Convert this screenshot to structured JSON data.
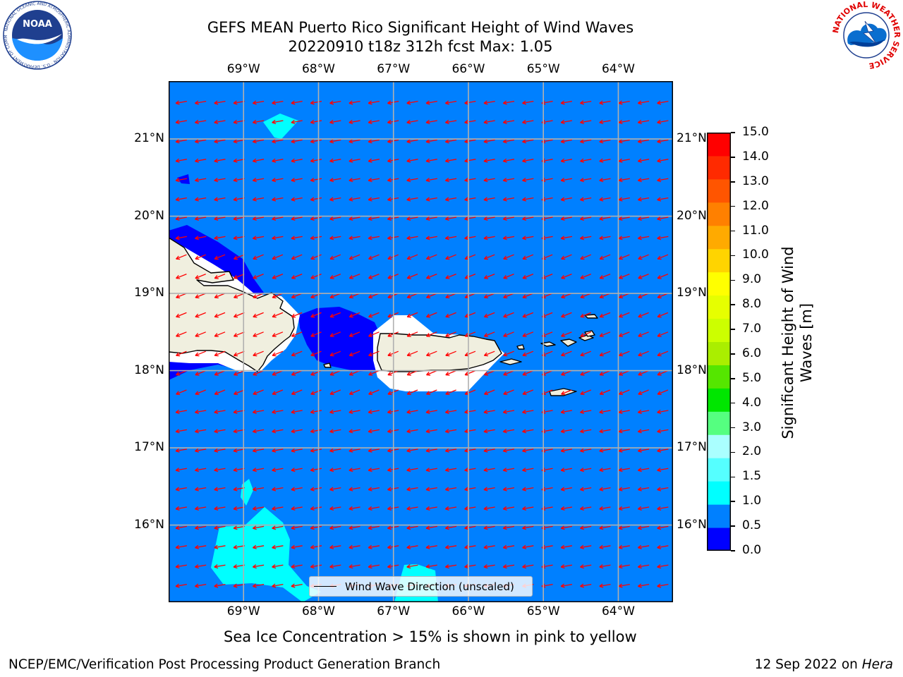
{
  "title": {
    "line1": "GEFS MEAN Puerto Rico Significant Height of Wind Waves",
    "line2": "20220910 t18z 312h fcst   Max: 1.05"
  },
  "logos": {
    "left": {
      "icon": "noaa-logo",
      "text": "NOAA",
      "ring_text": "NATIONAL OCEANIC AND ATMOSPHERIC ADMINISTRATION · U.S. DEPARTMENT OF COMMERCE"
    },
    "right": {
      "icon": "nws-logo",
      "ring_text": "NATIONAL WEATHER SERVICE"
    }
  },
  "map": {
    "lon_labels": [
      "69°W",
      "68°W",
      "67°W",
      "66°W",
      "65°W",
      "64°W"
    ],
    "lat_labels": [
      "21°N",
      "20°N",
      "19°N",
      "18°N",
      "17°N",
      "16°N"
    ],
    "lon_values": [
      -69,
      -68,
      -67,
      -66,
      -65,
      -64
    ],
    "lat_values": [
      21,
      20,
      19,
      18,
      17,
      16
    ],
    "extent": {
      "lon_min": -70,
      "lon_max": -63.27,
      "lat_min": 15,
      "lat_max": 21.75
    },
    "colors": {
      "ocean_base": "#0080ff",
      "low_band": "#0000ff",
      "mid_band": "#00ffff",
      "land": "#f0efdf",
      "arrow": "#ff0000",
      "grid": "#b0b0b0"
    },
    "legend_label": "Wind Wave Direction (unscaled)"
  },
  "colorbar": {
    "title_line1": "Significant Height of Wind",
    "title_line2": "Waves [m]",
    "ticks": [
      "0.0",
      "0.5",
      "1.0",
      "1.5",
      "2.0",
      "3.0",
      "4.0",
      "5.0",
      "6.0",
      "7.0",
      "8.0",
      "9.0",
      "10.0",
      "11.0",
      "12.0",
      "13.0",
      "14.0",
      "15.0"
    ],
    "colors": [
      "#0000ff",
      "#0080ff",
      "#00ffff",
      "#55ffff",
      "#aaffff",
      "#55ff80",
      "#00e600",
      "#55e600",
      "#aaee00",
      "#ccff00",
      "#e6ff00",
      "#ffff00",
      "#ffd400",
      "#ffaa00",
      "#ff8000",
      "#ff5500",
      "#ff2a00",
      "#ff0000"
    ]
  },
  "caption": "Sea Ice Concentration > 15% is shown in pink to yellow",
  "footer": {
    "left": "NCEP/EMC/Verification Post Processing Product Generation Branch",
    "right_prefix": "12 Sep 2022 on ",
    "right_italic": "Hera"
  }
}
